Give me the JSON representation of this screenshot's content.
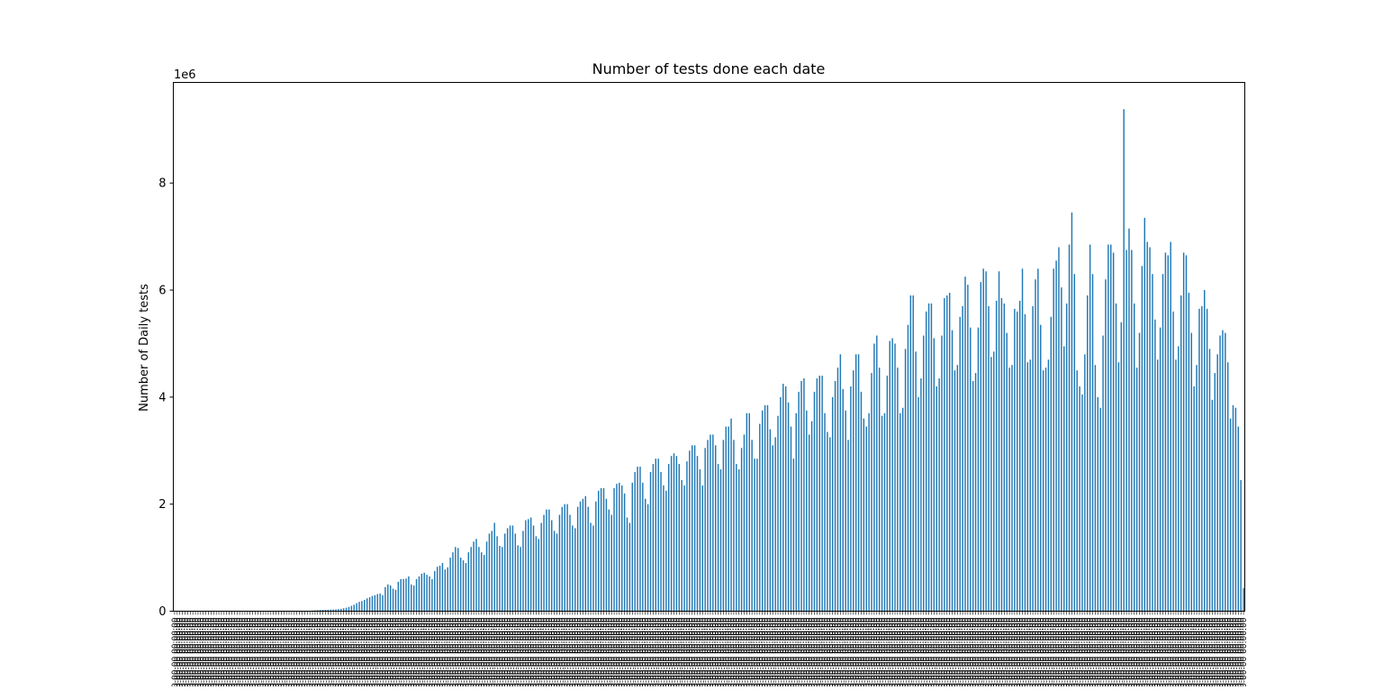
{
  "chart_data": {
    "type": "bar",
    "title": "Number of tests done each date",
    "xlabel": "",
    "ylabel": "Number of Daily tests",
    "y_offset_label": "1e6",
    "y_scale": 1000000,
    "yticks": [
      0,
      2,
      4,
      6,
      8
    ],
    "ylim": [
      0,
      9880000
    ],
    "bar_color": "#1f77b4",
    "grid": false,
    "legend": "none",
    "x_tick_label_example": "2020-00-00 00:00:00",
    "series": [
      {
        "values": [
          0,
          0,
          0,
          0,
          0,
          0,
          0,
          0,
          0,
          0,
          0,
          0,
          0,
          0,
          0,
          0,
          0,
          0,
          0,
          0,
          0,
          0,
          0,
          0,
          0,
          0,
          0,
          0,
          0,
          0,
          0,
          0,
          0,
          0,
          0,
          0,
          0,
          0,
          0,
          0,
          0,
          0,
          0,
          0,
          0,
          0,
          0,
          0,
          0,
          0,
          3000,
          5000,
          8000,
          12000,
          17000,
          20000,
          22000,
          24000,
          26000,
          28000,
          30000,
          32000,
          35000,
          40000,
          45000,
          55000,
          65000,
          80000,
          100000,
          120000,
          150000,
          175000,
          190000,
          210000,
          240000,
          260000,
          285000,
          300000,
          320000,
          330000,
          300000,
          450000,
          500000,
          480000,
          420000,
          400000,
          550000,
          600000,
          600000,
          610000,
          650000,
          500000,
          480000,
          600000,
          650000,
          700000,
          720000,
          680000,
          650000,
          600000,
          750000,
          830000,
          850000,
          900000,
          780000,
          820000,
          1000000,
          1100000,
          1200000,
          1180000,
          1000000,
          950000,
          900000,
          1100000,
          1200000,
          1300000,
          1350000,
          1200000,
          1100000,
          1050000,
          1300000,
          1450000,
          1500000,
          1650000,
          1400000,
          1220000,
          1200000,
          1450000,
          1550000,
          1600000,
          1600000,
          1450000,
          1230000,
          1200000,
          1500000,
          1700000,
          1720000,
          1750000,
          1600000,
          1400000,
          1350000,
          1650000,
          1800000,
          1900000,
          1900000,
          1700000,
          1500000,
          1450000,
          1800000,
          1950000,
          2000000,
          2000000,
          1800000,
          1600000,
          1550000,
          1950000,
          2050000,
          2100000,
          2150000,
          1950000,
          1650000,
          1600000,
          2050000,
          2250000,
          2300000,
          2300000,
          2100000,
          1900000,
          1800000,
          2300000,
          2380000,
          2400000,
          2350000,
          2200000,
          1750000,
          1650000,
          2400000,
          2600000,
          2700000,
          2700000,
          2400000,
          2100000,
          2000000,
          2600000,
          2750000,
          2850000,
          2850000,
          2600000,
          2350000,
          2250000,
          2750000,
          2900000,
          2950000,
          2900000,
          2750000,
          2450000,
          2350000,
          2800000,
          3000000,
          3100000,
          3100000,
          2900000,
          2650000,
          2350000,
          3050000,
          3200000,
          3300000,
          3300000,
          3100000,
          2750000,
          2650000,
          3200000,
          3450000,
          3450000,
          3600000,
          3200000,
          2750000,
          2650000,
          3050000,
          3300000,
          3700000,
          3700000,
          3200000,
          2850000,
          2850000,
          3500000,
          3750000,
          3850000,
          3850000,
          3400000,
          3100000,
          3250000,
          3650000,
          4000000,
          4250000,
          4200000,
          3900000,
          3450000,
          2850000,
          3700000,
          4100000,
          4300000,
          4350000,
          3750000,
          3300000,
          3550000,
          4100000,
          4350000,
          4400000,
          4400000,
          3700000,
          3350000,
          3250000,
          4000000,
          4300000,
          4550000,
          4800000,
          4150000,
          3750000,
          3200000,
          4200000,
          4500000,
          4800000,
          4800000,
          4100000,
          3600000,
          3450000,
          3700000,
          4450000,
          5000000,
          5150000,
          4550000,
          3650000,
          3700000,
          4400000,
          5050000,
          5100000,
          5000000,
          4550000,
          3700000,
          3800000,
          4900000,
          5350000,
          5900000,
          5900000,
          4850000,
          4000000,
          4350000,
          5150000,
          5600000,
          5750000,
          5750000,
          5100000,
          4200000,
          4350000,
          5150000,
          5850000,
          5900000,
          5950000,
          5250000,
          4500000,
          4600000,
          5500000,
          5700000,
          6250000,
          6100000,
          5300000,
          4300000,
          4450000,
          5300000,
          6150000,
          6400000,
          6350000,
          5700000,
          4750000,
          4850000,
          5800000,
          6350000,
          5850000,
          5750000,
          5200000,
          4550000,
          4600000,
          5650000,
          5600000,
          5800000,
          6400000,
          5550000,
          4650000,
          4700000,
          5700000,
          6200000,
          6400000,
          5350000,
          4500000,
          4550000,
          4700000,
          5500000,
          6400000,
          6550000,
          6800000,
          6050000,
          4950000,
          5750000,
          6850000,
          7450000,
          6300000,
          4500000,
          4200000,
          4050000,
          4800000,
          5900000,
          6850000,
          6300000,
          4600000,
          4000000,
          3800000,
          5150000,
          6200000,
          6850000,
          6850000,
          6700000,
          5750000,
          4650000,
          5400000,
          9380000,
          6750000,
          7150000,
          6750000,
          5750000,
          4550000,
          5200000,
          6450000,
          7350000,
          6900000,
          6800000,
          6300000,
          5450000,
          4700000,
          5300000,
          6300000,
          6700000,
          6650000,
          6900000,
          5600000,
          4700000,
          4950000,
          5900000,
          6700000,
          6650000,
          5950000,
          5200000,
          4200000,
          4600000,
          5650000,
          5700000,
          6000000,
          5650000,
          4900000,
          3950000,
          4450000,
          4800000,
          5150000,
          5250000,
          5200000,
          4650000,
          3600000,
          3850000,
          3800000,
          3450000,
          2450000,
          430000
        ]
      }
    ]
  }
}
